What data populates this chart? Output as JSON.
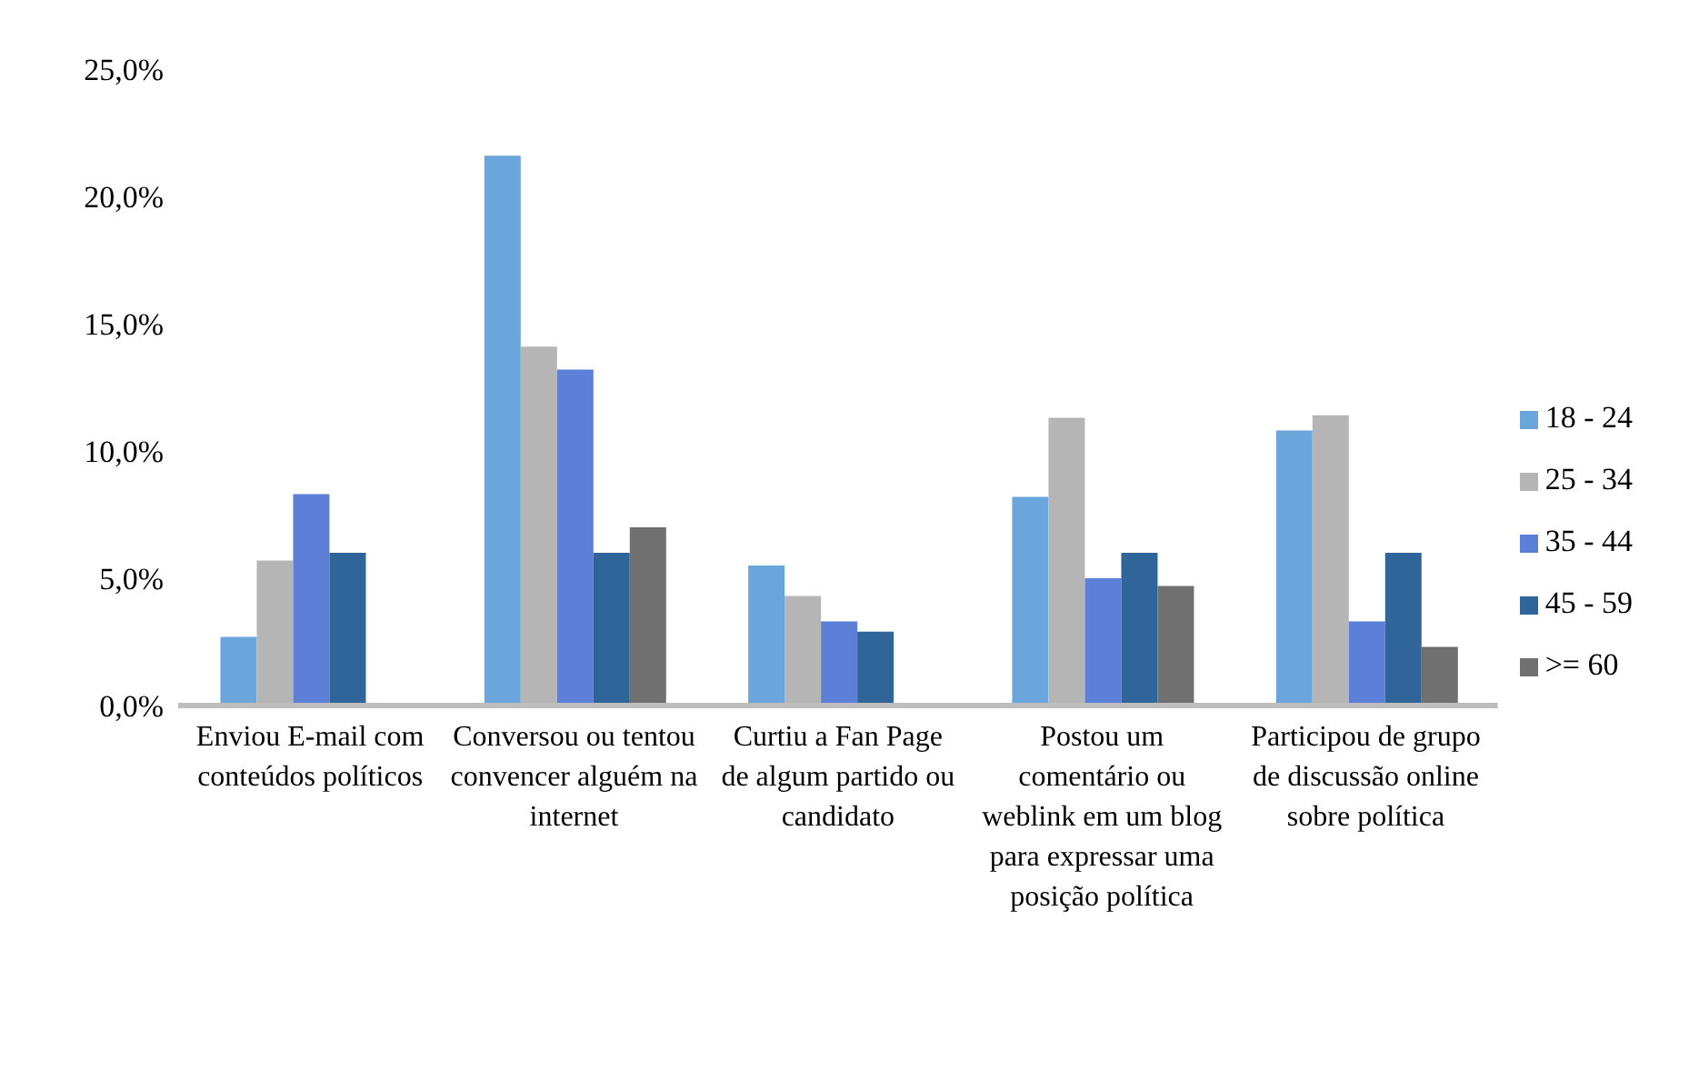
{
  "chart_data": {
    "type": "bar",
    "categories": [
      "Enviou E-mail com conteúdos políticos",
      "Conversou ou tentou convencer alguém na internet",
      "Curtiu a Fan Page de algum partido ou candidato",
      "Postou um comentário ou weblink em um blog para expressar uma posição política",
      "Participou de grupo de discussão online sobre política"
    ],
    "series": [
      {
        "name": "18 - 24",
        "color": "#6aa6dc",
        "values": [
          2.7,
          21.6,
          5.5,
          8.2,
          10.8
        ]
      },
      {
        "name": "25 - 34",
        "color": "#b5b5b5",
        "values": [
          5.7,
          14.1,
          4.3,
          11.3,
          11.4
        ]
      },
      {
        "name": "35 - 44",
        "color": "#5c80d8",
        "values": [
          8.3,
          13.2,
          3.3,
          5.0,
          3.3
        ]
      },
      {
        "name": "45 - 59",
        "color": "#2f6598",
        "values": [
          6.0,
          6.0,
          2.9,
          6.0,
          6.0
        ]
      },
      {
        "name": ">= 60",
        "color": "#707070",
        "values": [
          null,
          7.0,
          null,
          4.7,
          2.3
        ]
      }
    ],
    "ylim": [
      0,
      25
    ],
    "yticks": [
      {
        "value": 0,
        "label": "0,0%"
      },
      {
        "value": 5,
        "label": "5,0%"
      },
      {
        "value": 10,
        "label": "10,0%"
      },
      {
        "value": 15,
        "label": "15,0%"
      },
      {
        "value": 20,
        "label": "20,0%"
      },
      {
        "value": 25,
        "label": "25,0%"
      }
    ],
    "grid": false,
    "legend": "right"
  }
}
